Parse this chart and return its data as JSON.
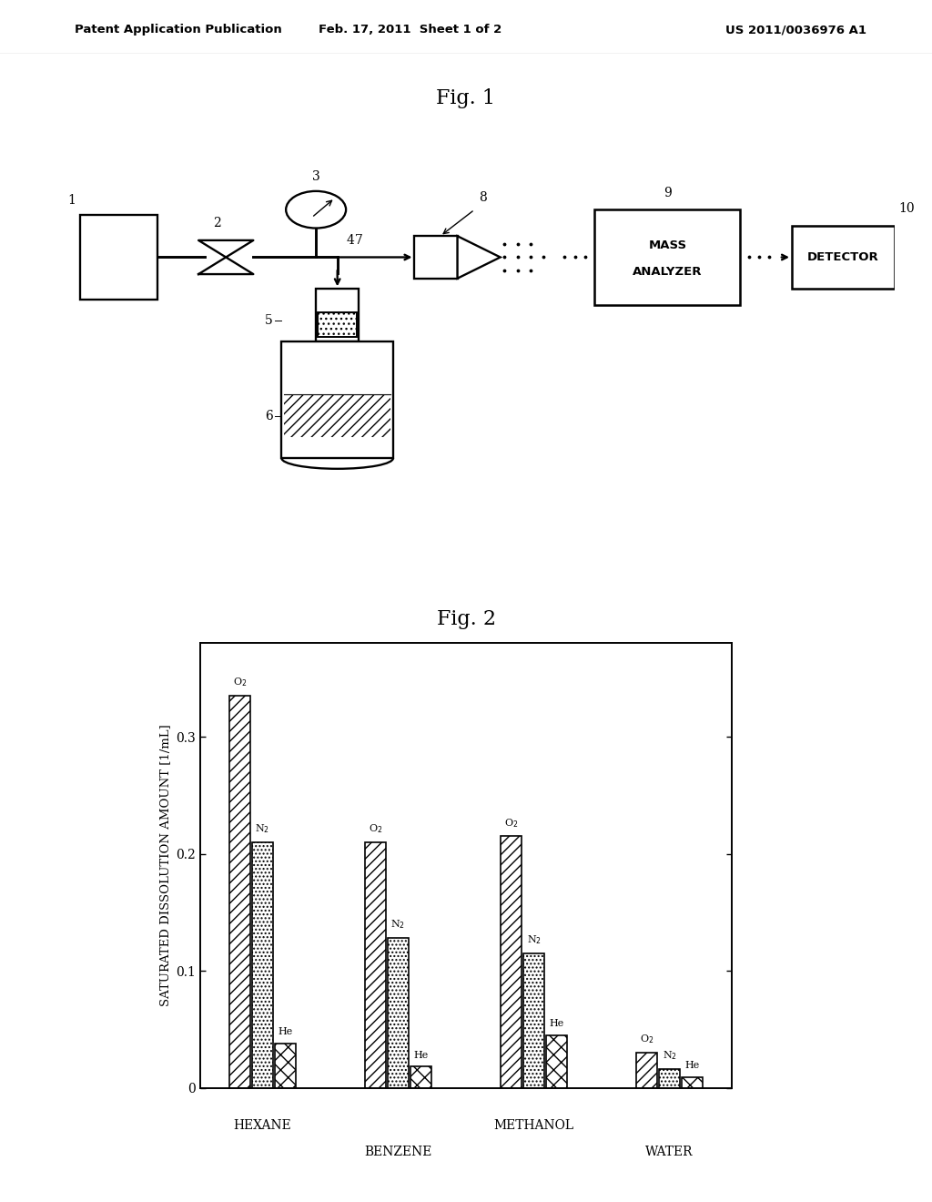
{
  "header_left": "Patent Application Publication",
  "header_center": "Feb. 17, 2011  Sheet 1 of 2",
  "header_right": "US 2011/0036976 A1",
  "fig1_title": "Fig. 1",
  "fig2_title": "Fig. 2",
  "fig2_ylabel": "SATURATED DISSOLUTION AMOUNT [1/mL]",
  "fig2_data": {
    "HEXANE": {
      "O2": 0.335,
      "N2": 0.21,
      "He": 0.038
    },
    "BENZENE": {
      "O2": 0.21,
      "N2": 0.128,
      "He": 0.018
    },
    "METHANOL": {
      "O2": 0.215,
      "N2": 0.115,
      "He": 0.045
    },
    "WATER": {
      "O2": 0.03,
      "N2": 0.016,
      "He": 0.009
    }
  },
  "fig2_yticks": [
    0,
    0.1,
    0.2,
    0.3
  ],
  "fig2_ylim": [
    0,
    0.38
  ],
  "background_color": "#ffffff",
  "text_color": "#000000",
  "bar_width": 0.2,
  "group_centers": [
    0.85,
    2.05,
    3.25,
    4.45
  ],
  "xlim": [
    0.3,
    5.0
  ]
}
